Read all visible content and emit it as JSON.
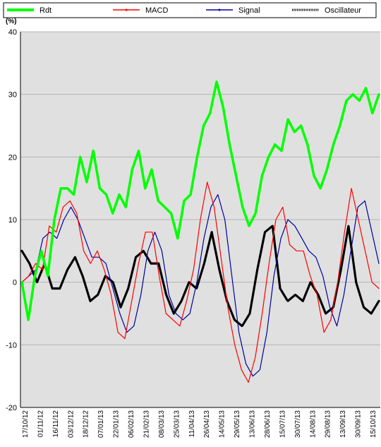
{
  "chart_data": {
    "type": "line",
    "ylabel": "(%)",
    "ylim": [
      -20,
      40
    ],
    "yticks": [
      40,
      30,
      20,
      10,
      0,
      -10,
      -20
    ],
    "grid": true,
    "legend_position": "top",
    "x_tick_labels": [
      "17/10/12",
      "01/11/12",
      "16/11/12",
      "03/12/12",
      "18/12/12",
      "07/01/13",
      "22/01/13",
      "06/02/13",
      "21/02/13",
      "08/03/13",
      "25/03/13",
      "11/04/13",
      "26/04/13",
      "14/05/13",
      "29/05/13",
      "13/06/13",
      "28/06/13",
      "15/07/13",
      "30/07/13",
      "14/08/13",
      "29/08/13",
      "13/09/13",
      "30/09/13",
      "15/10/13"
    ],
    "series": [
      {
        "name": "Rdt",
        "color": "#00ff00",
        "values": [
          0,
          -6,
          1,
          5,
          1,
          10,
          15,
          15,
          14,
          20,
          16,
          21,
          15,
          14,
          11,
          14,
          12,
          18,
          21,
          15,
          18,
          13,
          12,
          11,
          7,
          13,
          14,
          20,
          25,
          27,
          32,
          28,
          22,
          17,
          12,
          9,
          11,
          17,
          20,
          22,
          21,
          26,
          24,
          25,
          22,
          17,
          15,
          18,
          22,
          25,
          29,
          30,
          29,
          31,
          27,
          30
        ]
      },
      {
        "name": "MACD",
        "color": "#ff0000",
        "values": [
          0,
          1,
          3,
          2,
          9,
          8,
          12,
          13,
          11,
          5,
          3,
          5,
          2,
          -2,
          -8,
          -9,
          -3,
          3,
          8,
          8,
          1,
          -5,
          -6,
          -7,
          -3,
          2,
          10,
          16,
          12,
          4,
          -4,
          -10,
          -14,
          -16,
          -12,
          -5,
          3,
          10,
          12,
          6,
          5,
          5,
          1,
          -2,
          -8,
          -6,
          0,
          8,
          15,
          10,
          5,
          0,
          -1
        ]
      },
      {
        "name": "Signal",
        "color": "#0000a0",
        "values": [
          0,
          1,
          2,
          7,
          8,
          7,
          10,
          12,
          10,
          7,
          4,
          4,
          3,
          -1,
          -5,
          -8,
          -7,
          -2,
          5,
          8,
          5,
          -2,
          -5,
          -6,
          -5,
          0,
          7,
          12,
          14,
          10,
          1,
          -8,
          -13,
          -15,
          -14,
          -8,
          1,
          7,
          10,
          9,
          7,
          5,
          4,
          1,
          -4,
          -7,
          -2,
          5,
          12,
          13,
          8,
          3
        ]
      },
      {
        "name": "Oscillateur",
        "color": "#000000",
        "values": [
          5,
          3,
          0,
          3,
          -1,
          -1,
          2,
          4,
          1,
          -3,
          -2,
          1,
          0,
          -4,
          -1,
          4,
          5,
          3,
          3,
          -2,
          -5,
          -3,
          0,
          -1,
          3,
          8,
          2,
          -3,
          -6,
          -7,
          -5,
          2,
          8,
          9,
          -1,
          -3,
          -2,
          -3,
          0,
          -2,
          -5,
          -4,
          2,
          9,
          0,
          -4,
          -5,
          -3
        ]
      }
    ]
  }
}
